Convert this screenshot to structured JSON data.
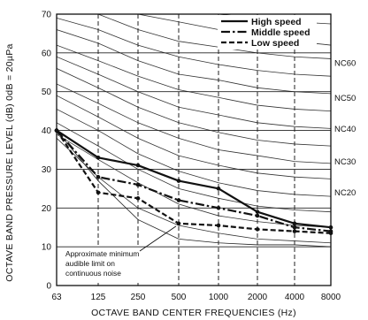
{
  "chart_data": {
    "type": "line",
    "ylabel": "OCTAVE  BAND  PRESSURE  LEVEL (dB) 0dB = 20µPa",
    "xlabel": "OCTAVE  BAND  CENTER  FREQUENCIES (Hz)",
    "x_categories": [
      "63",
      "125",
      "250",
      "500",
      "1000",
      "2000",
      "4000",
      "8000"
    ],
    "y_ticks": [
      0,
      10,
      20,
      30,
      40,
      50,
      60,
      70
    ],
    "ylim": [
      0,
      70
    ],
    "grid": true,
    "legend_position": "top-right",
    "series": [
      {
        "name": "High speed",
        "style": "solid",
        "values": [
          40,
          33,
          31,
          27,
          25,
          19,
          16,
          15
        ]
      },
      {
        "name": "Middle speed",
        "style": "dash-dot",
        "values": [
          40,
          28,
          26,
          22,
          20,
          18,
          15,
          14
        ]
      },
      {
        "name": "Low speed",
        "style": "dashed",
        "values": [
          40,
          24,
          22.5,
          16,
          15.5,
          14.5,
          14,
          13.5
        ]
      }
    ],
    "nc_labels": [
      {
        "label": "NC60",
        "value": 57.5
      },
      {
        "label": "NC50",
        "value": 48.5
      },
      {
        "label": "NC40",
        "value": 40.5
      },
      {
        "label": "NC30",
        "value": 32
      },
      {
        "label": "NC20",
        "value": 24
      }
    ],
    "nc_curves": [
      [
        79,
        78,
        74,
        71.5,
        70,
        69,
        68,
        67.5
      ],
      [
        76,
        74,
        70,
        68,
        66,
        64,
        63,
        62
      ],
      [
        72.5,
        70,
        66,
        63,
        61.5,
        60,
        59,
        58.5
      ],
      [
        69,
        66,
        62,
        59,
        57,
        55.5,
        54.5,
        54
      ],
      [
        66,
        62.5,
        58,
        54.5,
        53,
        51,
        50,
        49.5
      ],
      [
        62,
        58,
        54,
        50.5,
        48.5,
        46.5,
        45.5,
        45
      ],
      [
        59,
        54.5,
        50,
        46,
        44,
        42,
        41,
        40.5
      ],
      [
        56,
        51,
        46,
        42,
        39.5,
        37.5,
        36.5,
        36
      ],
      [
        52,
        47,
        42,
        38,
        35,
        33.5,
        32,
        31.5
      ],
      [
        49,
        43.5,
        38,
        33.5,
        31,
        29,
        28,
        27.5
      ],
      [
        45.5,
        40,
        34,
        29.5,
        26.5,
        24.5,
        23.5,
        23
      ],
      [
        42,
        36,
        30,
        25,
        22.5,
        20.5,
        19.5,
        19
      ],
      [
        39,
        32.5,
        26.5,
        21,
        18,
        16.5,
        15.5,
        15
      ],
      [
        38,
        28,
        20,
        15.5,
        13.5,
        12,
        11.5,
        11
      ]
    ],
    "audible_limit_curve": [
      40,
      27,
      17,
      12,
      11,
      10.5,
      10.5,
      10
    ],
    "annotation": {
      "lines": [
        "Approximate minimum",
        "audible limit on",
        "continuous noise"
      ],
      "points_to": {
        "x": "500",
        "y": 16
      }
    }
  }
}
